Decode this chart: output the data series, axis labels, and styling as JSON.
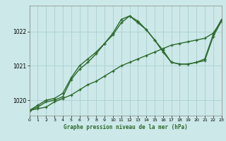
{
  "title": "Graphe pression niveau de la mer (hPa)",
  "background_color": "#cce8e8",
  "grid_color": "#aad0d0",
  "line_color": "#2d6a2d",
  "x_min": 0,
  "x_max": 23,
  "y_min": 1019.55,
  "y_max": 1022.75,
  "yticks": [
    1020,
    1021,
    1022
  ],
  "xticks": [
    0,
    1,
    2,
    3,
    4,
    5,
    6,
    7,
    8,
    9,
    10,
    11,
    12,
    13,
    14,
    15,
    16,
    17,
    18,
    19,
    20,
    21,
    22,
    23
  ],
  "series1_x": [
    0,
    1,
    2,
    3,
    4,
    5,
    6,
    7,
    8,
    9,
    10,
    11,
    12,
    13,
    14,
    15,
    16,
    17,
    18,
    19,
    20,
    21,
    22,
    23
  ],
  "series1_y": [
    1019.7,
    1019.75,
    1019.8,
    1019.95,
    1020.05,
    1020.15,
    1020.3,
    1020.45,
    1020.55,
    1020.7,
    1020.85,
    1021.0,
    1021.1,
    1021.2,
    1021.3,
    1021.4,
    1021.5,
    1021.6,
    1021.65,
    1021.7,
    1021.75,
    1021.8,
    1021.95,
    1022.3
  ],
  "series2_x": [
    0,
    1,
    2,
    3,
    4,
    5,
    6,
    7,
    8,
    9,
    10,
    11,
    12,
    13,
    14,
    15,
    16,
    17,
    18,
    19,
    20,
    21,
    22,
    23
  ],
  "series2_y": [
    1019.7,
    1019.8,
    1019.95,
    1020.0,
    1020.1,
    1020.6,
    1020.9,
    1021.1,
    1021.35,
    1021.65,
    1021.95,
    1022.35,
    1022.45,
    1022.3,
    1022.05,
    1021.75,
    1021.45,
    1021.1,
    1021.05,
    1021.05,
    1021.1,
    1021.15,
    1021.85,
    1022.3
  ],
  "series3_x": [
    0,
    1,
    2,
    3,
    4,
    5,
    6,
    7,
    8,
    9,
    10,
    11,
    12,
    13,
    14,
    15,
    16,
    17,
    18,
    19,
    20,
    21,
    22,
    23
  ],
  "series3_y": [
    1019.7,
    1019.85,
    1020.0,
    1020.05,
    1020.2,
    1020.65,
    1021.0,
    1021.2,
    1021.4,
    1021.65,
    1021.9,
    1022.25,
    1022.45,
    1022.25,
    1022.05,
    1021.75,
    1021.4,
    1021.1,
    1021.05,
    1021.05,
    1021.1,
    1021.2,
    1021.9,
    1022.35
  ]
}
